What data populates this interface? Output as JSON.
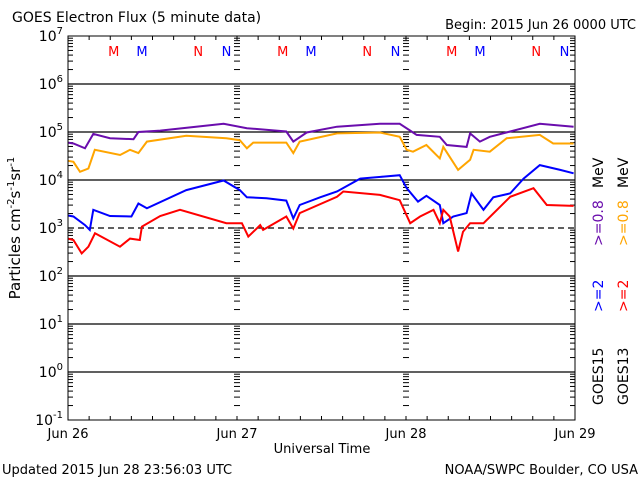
{
  "chart_data": {
    "type": "line",
    "title": "GOES Electron Flux (5 minute data)",
    "begin_label": "Begin: 2015 Jun 26 0000 UTC",
    "xlabel": "Universal Time",
    "ylabel_parts": [
      "Particles cm",
      "-2",
      "s",
      "-1",
      "sr",
      "-1"
    ],
    "x_unit": "hours since 2015 Jun 26 0000 UTC",
    "xlim": [
      0,
      72
    ],
    "x_ticks": [
      {
        "hour": 0,
        "label": "Jun 26"
      },
      {
        "hour": 24,
        "label": "Jun 27"
      },
      {
        "hour": 48,
        "label": "Jun 28"
      },
      {
        "hour": 72,
        "label": "Jun 29"
      }
    ],
    "y_scale": "log",
    "ylim_log10": [
      -1,
      7
    ],
    "y_ticks": [
      {
        "exp": "7",
        "log": 7
      },
      {
        "exp": "6",
        "log": 6
      },
      {
        "exp": "5",
        "log": 5
      },
      {
        "exp": "4",
        "log": 4
      },
      {
        "exp": "3",
        "log": 3
      },
      {
        "exp": "2",
        "log": 2
      },
      {
        "exp": "1",
        "log": 1
      },
      {
        "exp": "0",
        "log": 0
      },
      {
        "exp": "-1",
        "log": -1
      }
    ],
    "y_tick_base": "10",
    "threshold_log10": 3,
    "grid": "horizontal lines at each decade, dashed at 10^3",
    "markers": [
      {
        "label": "M",
        "hour": 6.5,
        "color": "#ff0000"
      },
      {
        "label": "M",
        "hour": 10.5,
        "color": "#0000ff"
      },
      {
        "label": "N",
        "hour": 18.5,
        "color": "#ff0000"
      },
      {
        "label": "N",
        "hour": 22.5,
        "color": "#0000ff"
      },
      {
        "label": "M",
        "hour": 30.5,
        "color": "#ff0000"
      },
      {
        "label": "M",
        "hour": 34.5,
        "color": "#0000ff"
      },
      {
        "label": "N",
        "hour": 42.5,
        "color": "#ff0000"
      },
      {
        "label": "N",
        "hour": 46.5,
        "color": "#0000ff"
      },
      {
        "label": "M",
        "hour": 54.5,
        "color": "#ff0000"
      },
      {
        "label": "M",
        "hour": 58.5,
        "color": "#0000ff"
      },
      {
        "label": "N",
        "hour": 66.5,
        "color": "#ff0000"
      },
      {
        "label": "N",
        "hour": 70.5,
        "color": "#0000ff"
      }
    ],
    "series": [
      {
        "name": "GOES15 >=0.8 MeV",
        "color": "#6a0dad",
        "points_hour_log10": [
          [
            0,
            4.78
          ],
          [
            0.76,
            4.76
          ],
          [
            2.42,
            4.66
          ],
          [
            3.6,
            4.96
          ],
          [
            5.96,
            4.87
          ],
          [
            9.3,
            4.85
          ],
          [
            10,
            5.0
          ],
          [
            13.1,
            5.03
          ],
          [
            22.1,
            5.17
          ],
          [
            25.4,
            5.08
          ],
          [
            31,
            5.01
          ],
          [
            32,
            4.8
          ],
          [
            33.9,
            4.99
          ],
          [
            38.2,
            5.11
          ],
          [
            44.3,
            5.17
          ],
          [
            47.1,
            5.17
          ],
          [
            48.6,
            5.03
          ],
          [
            49.5,
            4.94
          ],
          [
            52.8,
            4.9
          ],
          [
            53.8,
            4.73
          ],
          [
            56.6,
            4.69
          ],
          [
            57.1,
            4.97
          ],
          [
            58.5,
            4.8
          ],
          [
            59.9,
            4.9
          ],
          [
            62.8,
            5.01
          ],
          [
            67,
            5.17
          ],
          [
            71.8,
            5.11
          ]
        ]
      },
      {
        "name": "GOES13 >=0.8 MeV",
        "color": "#ffa500",
        "points_hour_log10": [
          [
            0,
            4.4
          ],
          [
            0.76,
            4.38
          ],
          [
            1.7,
            4.17
          ],
          [
            2.9,
            4.24
          ],
          [
            3.8,
            4.63
          ],
          [
            7.4,
            4.52
          ],
          [
            8.8,
            4.63
          ],
          [
            10,
            4.56
          ],
          [
            11.2,
            4.8
          ],
          [
            16.8,
            4.92
          ],
          [
            22.5,
            4.87
          ],
          [
            24.4,
            4.83
          ],
          [
            25.4,
            4.66
          ],
          [
            26.3,
            4.78
          ],
          [
            31,
            4.78
          ],
          [
            32,
            4.56
          ],
          [
            32.9,
            4.8
          ],
          [
            38.2,
            4.97
          ],
          [
            44.3,
            4.99
          ],
          [
            47.1,
            4.9
          ],
          [
            48.1,
            4.63
          ],
          [
            49,
            4.59
          ],
          [
            50.9,
            4.73
          ],
          [
            52.8,
            4.45
          ],
          [
            53.3,
            4.69
          ],
          [
            55.4,
            4.21
          ],
          [
            57.1,
            4.42
          ],
          [
            57.6,
            4.63
          ],
          [
            59.9,
            4.59
          ],
          [
            62.3,
            4.87
          ],
          [
            67,
            4.94
          ],
          [
            68.9,
            4.76
          ],
          [
            71.8,
            4.76
          ]
        ]
      },
      {
        "name": "GOES15 >=2 MeV",
        "color": "#0000ff",
        "points_hour_log10": [
          [
            0,
            3.26
          ],
          [
            0.76,
            3.24
          ],
          [
            2.42,
            3.06
          ],
          [
            3.1,
            2.96
          ],
          [
            3.6,
            3.38
          ],
          [
            5.96,
            3.25
          ],
          [
            9,
            3.24
          ],
          [
            10,
            3.51
          ],
          [
            11.2,
            3.41
          ],
          [
            16.8,
            3.79
          ],
          [
            22.1,
            3.99
          ],
          [
            24.4,
            3.79
          ],
          [
            25.4,
            3.64
          ],
          [
            28.2,
            3.62
          ],
          [
            31,
            3.57
          ],
          [
            32,
            3.2
          ],
          [
            32.9,
            3.48
          ],
          [
            35.8,
            3.64
          ],
          [
            38.2,
            3.76
          ],
          [
            41.5,
            4.03
          ],
          [
            44.8,
            4.07
          ],
          [
            47.1,
            4.1
          ],
          [
            48.1,
            3.83
          ],
          [
            49.7,
            3.55
          ],
          [
            50.9,
            3.67
          ],
          [
            52.8,
            3.48
          ],
          [
            53.3,
            3.1
          ],
          [
            54.7,
            3.24
          ],
          [
            56.6,
            3.31
          ],
          [
            57.3,
            3.72
          ],
          [
            59,
            3.38
          ],
          [
            60.4,
            3.64
          ],
          [
            62.8,
            3.72
          ],
          [
            64.7,
            4.03
          ],
          [
            67,
            4.31
          ],
          [
            69.9,
            4.21
          ],
          [
            71.8,
            4.14
          ]
        ]
      },
      {
        "name": "GOES13 >=2 MeV",
        "color": "#ff0000",
        "points_hour_log10": [
          [
            0,
            2.78
          ],
          [
            0.76,
            2.75
          ],
          [
            1.94,
            2.47
          ],
          [
            2.9,
            2.61
          ],
          [
            3.83,
            2.89
          ],
          [
            7.38,
            2.61
          ],
          [
            8.8,
            2.78
          ],
          [
            10.2,
            2.75
          ],
          [
            10.5,
            3.03
          ],
          [
            13.1,
            3.25
          ],
          [
            15.9,
            3.38
          ],
          [
            22.5,
            3.1
          ],
          [
            24.7,
            3.1
          ],
          [
            25.6,
            2.82
          ],
          [
            27.3,
            3.06
          ],
          [
            27.7,
            2.96
          ],
          [
            31,
            3.24
          ],
          [
            32,
            2.99
          ],
          [
            32.9,
            3.31
          ],
          [
            38.2,
            3.65
          ],
          [
            39.1,
            3.76
          ],
          [
            44.3,
            3.69
          ],
          [
            47.1,
            3.58
          ],
          [
            48.6,
            3.1
          ],
          [
            50,
            3.24
          ],
          [
            51.9,
            3.38
          ],
          [
            52.8,
            3.1
          ],
          [
            53.3,
            3.38
          ],
          [
            54.2,
            3.24
          ],
          [
            55.4,
            2.51
          ],
          [
            56.1,
            2.92
          ],
          [
            57.1,
            3.1
          ],
          [
            59,
            3.1
          ],
          [
            62.8,
            3.65
          ],
          [
            66.1,
            3.83
          ],
          [
            68,
            3.48
          ],
          [
            71.8,
            3.46
          ]
        ]
      }
    ],
    "legend": {
      "placement": "right, rotated",
      "columns": [
        {
          "satellite": "GOES15",
          "labels": [
            {
              "text": ">=2",
              "color": "#0000ff"
            },
            {
              "text": ">=0.8",
              "color": "#6a0dad"
            }
          ],
          "unit": "MeV"
        },
        {
          "satellite": "GOES13",
          "labels": [
            {
              "text": ">=2",
              "color": "#ff0000"
            },
            {
              "text": ">=0.8",
              "color": "#ffa500"
            }
          ],
          "unit": "MeV"
        }
      ]
    }
  },
  "footer": {
    "updated": "Updated 2015 Jun 28 23:56:03 UTC",
    "source": "NOAA/SWPC Boulder, CO USA"
  }
}
